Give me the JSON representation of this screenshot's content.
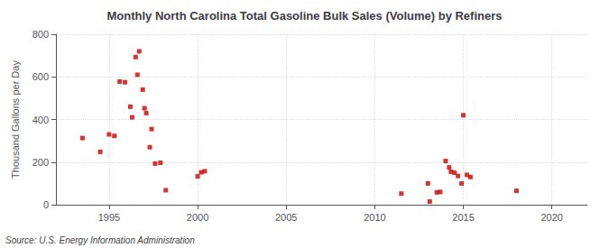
{
  "chart_data": {
    "type": "scatter",
    "title": "Monthly North Carolina Total Gasoline Bulk Sales (Volume) by Refiners",
    "ylabel": "Thousand Gallons per Day",
    "annotations": [
      "Source: U.S. Energy Information Administration"
    ],
    "x": [
      1993.5,
      1994.5,
      1995.0,
      1995.3,
      1995.6,
      1995.9,
      1996.2,
      1996.3,
      1996.5,
      1996.6,
      1996.7,
      1996.9,
      1997.0,
      1997.1,
      1997.3,
      1997.4,
      1997.6,
      1997.9,
      1998.2,
      2000.0,
      2000.2,
      2000.4,
      2011.5,
      2013.0,
      2013.1,
      2013.5,
      2013.7,
      2014.0,
      2014.2,
      2014.3,
      2014.5,
      2014.7,
      2014.9,
      2015.0,
      2015.2,
      2015.4,
      2018.0
    ],
    "values": [
      313,
      248,
      330,
      323,
      578,
      575,
      460,
      410,
      693,
      610,
      720,
      540,
      453,
      430,
      270,
      355,
      193,
      197,
      68,
      133,
      152,
      157,
      52,
      100,
      15,
      58,
      60,
      205,
      175,
      155,
      150,
      135,
      100,
      420,
      140,
      130,
      65
    ],
    "color": "#cc0000",
    "marker": "square",
    "xlim": [
      1992,
      2022
    ],
    "xticks": [
      1995,
      2000,
      2005,
      2010,
      2015,
      2020
    ],
    "ylim": [
      0,
      800
    ],
    "yticks": [
      0,
      200,
      400,
      600,
      800
    ],
    "grid": true
  }
}
